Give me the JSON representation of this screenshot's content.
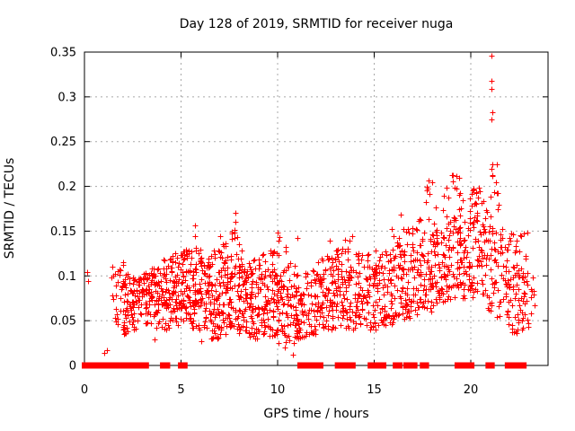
{
  "title": "Day 128 of 2019, SRMTID for receiver nuga",
  "xlabel": "GPS time / hours",
  "ylabel": "SRMTID / TECUs",
  "chart_data": {
    "type": "scatter",
    "title": "Day 128 of 2019, SRMTID for receiver nuga",
    "xlabel": "GPS time / hours",
    "ylabel": "SRMTID / TECUs",
    "marker": "plus",
    "marker_color": "#ff0000",
    "grid_color": "#a8a8a8",
    "border_color": "#000000",
    "grid": true,
    "legend": "none",
    "xlim": [
      0,
      24
    ],
    "ylim": [
      0,
      0.35
    ],
    "xticks": [
      0,
      5,
      10,
      15,
      20
    ],
    "xtick_labels": [
      "0",
      "5",
      "10",
      "15",
      "20"
    ],
    "yticks": [
      0,
      0.05,
      0.1,
      0.15,
      0.2,
      0.25,
      0.3,
      0.35
    ],
    "ytick_labels": [
      "0",
      "0.05",
      "0.1",
      "0.15",
      "0.2",
      "0.25",
      "0.3",
      "0.35"
    ],
    "seed": 20190512,
    "outlier_points": [
      [
        21.05,
        0.346
      ],
      [
        21.07,
        0.318
      ],
      [
        21.07,
        0.309
      ],
      [
        21.1,
        0.283
      ],
      [
        21.09,
        0.275
      ],
      [
        21.13,
        0.225
      ],
      [
        21.1,
        0.212
      ],
      [
        21.32,
        0.205
      ],
      [
        19.02,
        0.213
      ],
      [
        19.08,
        0.206
      ],
      [
        17.82,
        0.207
      ],
      [
        17.78,
        0.198
      ],
      [
        17.85,
        0.192
      ],
      [
        20.15,
        0.198
      ],
      [
        20.3,
        0.193
      ],
      [
        18.6,
        0.19
      ],
      [
        7.8,
        0.17
      ],
      [
        7.82,
        0.16
      ],
      [
        7.79,
        0.151
      ],
      [
        5.72,
        0.156
      ],
      [
        5.7,
        0.144
      ],
      [
        10.02,
        0.148
      ],
      [
        10.08,
        0.143
      ],
      [
        10.05,
        0.139
      ],
      [
        12.72,
        0.139
      ],
      [
        11.0,
        0.142
      ],
      [
        13.05,
        0.124
      ],
      [
        16.35,
        0.168
      ],
      [
        15.9,
        0.152
      ],
      [
        0.12,
        0.104
      ],
      [
        0.18,
        0.094
      ],
      [
        1.44,
        0.11
      ],
      [
        1.02,
        0.014
      ],
      [
        1.16,
        0.017
      ],
      [
        3.62,
        0.029
      ],
      [
        6.05,
        0.027
      ],
      [
        10.37,
        0.02
      ],
      [
        10.8,
        0.012
      ]
    ],
    "density_bands": [
      [
        1.3,
        1.5,
        4,
        0.06,
        0.1,
        0.08
      ],
      [
        1.5,
        2.0,
        22,
        0.04,
        0.115,
        0.08
      ],
      [
        2.0,
        2.5,
        48,
        0.035,
        0.105,
        0.07
      ],
      [
        2.5,
        3.0,
        44,
        0.04,
        0.1,
        0.075
      ],
      [
        3.0,
        3.5,
        48,
        0.045,
        0.105,
        0.078
      ],
      [
        3.5,
        4.0,
        44,
        0.04,
        0.11,
        0.078
      ],
      [
        4.0,
        4.5,
        48,
        0.04,
        0.12,
        0.08
      ],
      [
        4.5,
        5.0,
        52,
        0.045,
        0.125,
        0.085
      ],
      [
        5.0,
        5.5,
        56,
        0.05,
        0.13,
        0.09
      ],
      [
        5.5,
        6.0,
        52,
        0.04,
        0.135,
        0.088
      ],
      [
        6.0,
        6.5,
        56,
        0.035,
        0.12,
        0.08
      ],
      [
        6.5,
        7.0,
        56,
        0.03,
        0.13,
        0.075
      ],
      [
        7.0,
        7.5,
        56,
        0.035,
        0.145,
        0.08
      ],
      [
        7.5,
        8.0,
        52,
        0.04,
        0.15,
        0.085
      ],
      [
        8.0,
        8.5,
        52,
        0.035,
        0.13,
        0.08
      ],
      [
        8.5,
        9.0,
        52,
        0.03,
        0.12,
        0.075
      ],
      [
        9.0,
        9.5,
        52,
        0.035,
        0.125,
        0.075
      ],
      [
        9.5,
        10.0,
        48,
        0.03,
        0.135,
        0.075
      ],
      [
        10.0,
        10.5,
        48,
        0.025,
        0.14,
        0.07
      ],
      [
        10.5,
        11.0,
        42,
        0.025,
        0.115,
        0.065
      ],
      [
        11.0,
        11.5,
        38,
        0.03,
        0.105,
        0.065
      ],
      [
        11.5,
        12.0,
        38,
        0.035,
        0.11,
        0.07
      ],
      [
        12.0,
        12.5,
        42,
        0.04,
        0.12,
        0.075
      ],
      [
        12.5,
        13.0,
        42,
        0.04,
        0.125,
        0.078
      ],
      [
        13.0,
        13.5,
        42,
        0.045,
        0.13,
        0.082
      ],
      [
        13.5,
        14.0,
        38,
        0.04,
        0.145,
        0.085
      ],
      [
        14.0,
        14.5,
        42,
        0.045,
        0.13,
        0.082
      ],
      [
        14.5,
        15.0,
        38,
        0.04,
        0.125,
        0.08
      ],
      [
        15.0,
        15.5,
        42,
        0.04,
        0.13,
        0.08
      ],
      [
        15.5,
        16.0,
        42,
        0.045,
        0.135,
        0.085
      ],
      [
        16.0,
        16.5,
        42,
        0.05,
        0.145,
        0.09
      ],
      [
        16.5,
        17.0,
        42,
        0.05,
        0.155,
        0.095
      ],
      [
        17.0,
        17.5,
        42,
        0.055,
        0.165,
        0.1
      ],
      [
        17.5,
        18.0,
        46,
        0.06,
        0.205,
        0.11
      ],
      [
        18.0,
        18.5,
        42,
        0.065,
        0.185,
        0.115
      ],
      [
        18.5,
        19.0,
        46,
        0.07,
        0.2,
        0.125
      ],
      [
        19.0,
        19.5,
        50,
        0.075,
        0.215,
        0.135
      ],
      [
        19.5,
        20.0,
        42,
        0.07,
        0.19,
        0.125
      ],
      [
        20.0,
        20.5,
        46,
        0.075,
        0.2,
        0.13
      ],
      [
        20.5,
        21.0,
        38,
        0.06,
        0.185,
        0.12
      ],
      [
        21.0,
        21.5,
        38,
        0.05,
        0.225,
        0.13
      ],
      [
        21.5,
        22.0,
        42,
        0.045,
        0.165,
        0.105
      ],
      [
        22.0,
        22.5,
        42,
        0.035,
        0.155,
        0.095
      ],
      [
        22.5,
        23.0,
        32,
        0.04,
        0.15,
        0.09
      ],
      [
        23.0,
        23.3,
        8,
        0.05,
        0.12,
        0.08
      ]
    ],
    "zero_value_runs": [
      [
        0.0,
        1.32
      ],
      [
        1.55,
        1.72
      ],
      [
        2.0,
        2.8
      ],
      [
        3.0,
        3.2
      ],
      [
        4.05,
        4.3
      ],
      [
        4.98,
        5.2
      ],
      [
        11.16,
        11.53
      ],
      [
        11.72,
        12.23
      ],
      [
        13.1,
        13.35
      ],
      [
        13.6,
        13.9
      ],
      [
        14.8,
        15.07
      ],
      [
        15.26,
        15.49
      ],
      [
        16.1,
        16.33
      ],
      [
        16.65,
        17.1
      ],
      [
        17.5,
        17.7
      ],
      [
        19.3,
        19.72
      ],
      [
        19.8,
        20.05
      ],
      [
        20.9,
        21.1
      ],
      [
        21.9,
        22.15
      ],
      [
        22.3,
        22.75
      ]
    ]
  }
}
